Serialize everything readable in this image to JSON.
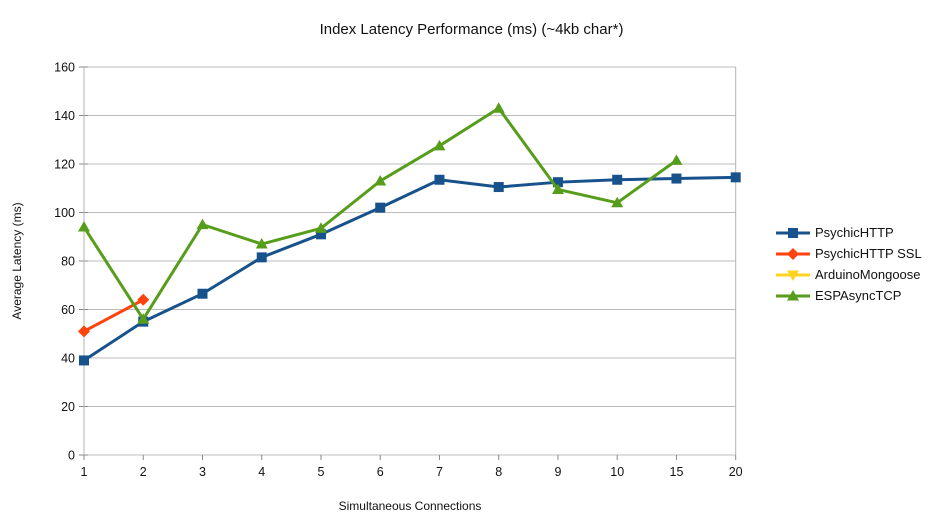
{
  "title": "Index Latency Performance (ms) (~4kb char*)",
  "colors": {
    "series_blue": "#17528C",
    "series_red": "#FF420E",
    "series_yellow": "#FFD320",
    "series_green": "#579D1C",
    "gridline": "#bcbcbc",
    "axis": "#b3b3b3",
    "text": "#111111",
    "background": "#ffffff"
  },
  "chart_data": {
    "type": "line",
    "title": "Index Latency Performance (ms) (~4kb char*)",
    "xlabel": "Simultaneous Connections",
    "ylabel": "Average Latency (ms)",
    "categories": [
      "1",
      "2",
      "3",
      "4",
      "5",
      "6",
      "7",
      "8",
      "9",
      "10",
      "15",
      "20"
    ],
    "ylim": [
      0,
      160
    ],
    "y_tick_step": 20,
    "y_tick_labels": [
      "0",
      "20",
      "40",
      "60",
      "80",
      "100",
      "120",
      "140",
      "160"
    ],
    "grid": true,
    "legend_position": "right",
    "series": [
      {
        "name": "PsychicHTTP",
        "color": "#17528C",
        "marker": "square",
        "values": [
          39,
          55,
          66.5,
          81.5,
          91,
          102,
          113.5,
          110.5,
          112.5,
          113.5,
          114,
          114.5
        ]
      },
      {
        "name": "PsychicHTTP SSL",
        "color": "#FF420E",
        "marker": "diamond",
        "values": [
          51,
          64,
          null,
          null,
          null,
          null,
          null,
          null,
          null,
          null,
          null,
          null
        ]
      },
      {
        "name": "ArduinoMongoose",
        "color": "#FFD320",
        "marker": "triangle-down",
        "values": [
          null,
          null,
          null,
          null,
          null,
          null,
          null,
          null,
          null,
          null,
          null,
          null
        ]
      },
      {
        "name": "ESPAsyncTCP",
        "color": "#579D1C",
        "marker": "triangle-up",
        "values": [
          94,
          56,
          95,
          87,
          93.5,
          113,
          127.5,
          143,
          109.5,
          104,
          121.5,
          null
        ]
      }
    ]
  }
}
